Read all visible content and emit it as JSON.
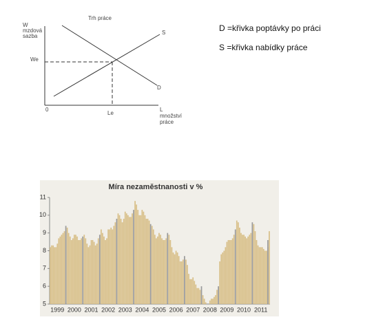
{
  "diagram": {
    "title": "Trh práce",
    "y_axis_label": [
      "W",
      "mzdová",
      "sazba"
    ],
    "equilibrium_wage": "We",
    "supply_label": "S",
    "demand_label": "D",
    "origin": "0",
    "equilibrium_quantity": "Le",
    "x_axis_label": [
      "L",
      "množství",
      "práce"
    ]
  },
  "legend_text": [
    "D =křivka poptávky po práci",
    "S =křivka nabídky práce"
  ],
  "chart_data": {
    "type": "bar",
    "title": "Míra nezaměstnanosti v %",
    "categories": [
      null,
      null,
      null,
      null,
      null,
      "1999",
      null,
      null,
      null,
      null,
      null,
      null,
      null,
      null,
      null,
      null,
      null,
      "2000",
      null,
      null,
      null,
      null,
      null,
      null,
      null,
      null,
      null,
      null,
      null,
      "2001",
      null,
      null,
      null,
      null,
      null,
      null,
      null,
      null,
      null,
      null,
      null,
      "2002",
      null,
      null,
      null,
      null,
      null,
      null,
      null,
      null,
      null,
      null,
      null,
      "2003",
      null,
      null,
      null,
      null,
      null,
      null,
      null,
      null,
      null,
      null,
      null,
      "2004",
      null,
      null,
      null,
      null,
      null,
      null,
      null,
      null,
      null,
      null,
      null,
      "2005",
      null,
      null,
      null,
      null,
      null,
      null,
      null,
      null,
      null,
      null,
      null,
      "2006",
      null,
      null,
      null,
      null,
      null,
      null,
      null,
      null,
      null,
      null,
      null,
      "2007",
      null,
      null,
      null,
      null,
      null,
      null,
      null,
      null,
      null,
      null,
      null,
      "2008",
      null,
      null,
      null,
      null,
      null,
      null,
      null,
      null,
      null,
      null,
      null,
      "2009",
      null,
      null,
      null,
      null,
      null,
      null,
      null,
      null,
      null,
      null,
      null,
      "2010",
      null,
      null,
      null,
      null,
      null,
      null,
      null,
      null,
      null,
      null,
      null,
      "2011",
      null,
      null,
      null,
      null,
      null,
      null
    ],
    "series": [
      {
        "color": "#d8bf88",
        "values": [
          8.2,
          8.3,
          8.3,
          8.2,
          8.2,
          8.4,
          8.7,
          8.8,
          8.9,
          9.0,
          9.1,
          null,
          9.3,
          9.0,
          8.8,
          8.6,
          8.7,
          8.9,
          8.9,
          8.8,
          8.6,
          8.6,
          8.7,
          null,
          8.9,
          8.7,
          8.4,
          8.2,
          8.3,
          8.6,
          8.6,
          8.5,
          8.3,
          8.4,
          8.7,
          null,
          9.2,
          9.0,
          8.8,
          8.6,
          8.7,
          9.2,
          9.2,
          9.3,
          9.2,
          9.4,
          9.6,
          null,
          10.1,
          10.0,
          9.8,
          9.6,
          9.8,
          10.2,
          10.1,
          10.0,
          9.9,
          9.9,
          10.1,
          null,
          10.8,
          10.6,
          10.3,
          10.0,
          10.0,
          10.3,
          10.2,
          10.0,
          9.8,
          9.8,
          9.7,
          null,
          9.4,
          9.2,
          8.9,
          8.7,
          8.8,
          9.0,
          8.9,
          8.7,
          8.6,
          8.6,
          8.7,
          null,
          8.9,
          8.6,
          8.2,
          7.9,
          7.8,
          8.0,
          7.9,
          7.7,
          7.4,
          7.4,
          7.5,
          null,
          7.5,
          7.2,
          6.7,
          6.4,
          6.4,
          6.5,
          6.3,
          6.1,
          5.9,
          5.9,
          5.8,
          null,
          5.5,
          5.3,
          5.1,
          5.0,
          5.0,
          5.2,
          5.3,
          5.3,
          5.4,
          5.5,
          5.8,
          null,
          7.4,
          7.8,
          7.9,
          8.0,
          8.2,
          8.5,
          8.6,
          8.6,
          8.6,
          8.7,
          8.9,
          null,
          9.7,
          9.6,
          9.3,
          9.0,
          8.9,
          8.9,
          8.8,
          8.7,
          8.8,
          8.9,
          9.0,
          null,
          9.5,
          9.1,
          8.6,
          8.3,
          8.2,
          8.2,
          8.2,
          8.1,
          8.0,
          8.0,
          8.2,
          9.1
        ]
      },
      {
        "color": "#9a9a9a",
        "values": [
          null,
          null,
          null,
          null,
          null,
          null,
          null,
          null,
          null,
          null,
          null,
          9.4,
          null,
          null,
          null,
          null,
          null,
          null,
          null,
          null,
          null,
          null,
          null,
          8.8,
          null,
          null,
          null,
          null,
          null,
          null,
          null,
          null,
          null,
          null,
          null,
          8.9,
          null,
          null,
          null,
          null,
          null,
          null,
          null,
          null,
          null,
          null,
          null,
          9.8,
          null,
          null,
          null,
          null,
          null,
          null,
          null,
          null,
          null,
          null,
          null,
          10.3,
          null,
          null,
          null,
          null,
          null,
          null,
          null,
          null,
          null,
          null,
          null,
          9.5,
          null,
          null,
          null,
          null,
          null,
          null,
          null,
          null,
          null,
          null,
          null,
          9.0,
          null,
          null,
          null,
          null,
          null,
          null,
          null,
          null,
          null,
          null,
          null,
          7.7,
          null,
          null,
          null,
          null,
          null,
          null,
          null,
          null,
          null,
          null,
          null,
          6.0,
          null,
          null,
          null,
          null,
          null,
          null,
          null,
          null,
          null,
          null,
          null,
          6.0,
          null,
          null,
          null,
          null,
          null,
          null,
          null,
          null,
          null,
          null,
          null,
          9.2,
          null,
          null,
          null,
          null,
          null,
          null,
          null,
          null,
          null,
          null,
          null,
          9.6,
          null,
          null,
          null,
          null,
          null,
          null,
          null,
          null,
          null,
          null,
          8.6,
          null
        ]
      }
    ],
    "ylim": [
      5,
      11
    ],
    "yticks": [
      5,
      6,
      7,
      8,
      9,
      10,
      11
    ],
    "grid": false
  }
}
